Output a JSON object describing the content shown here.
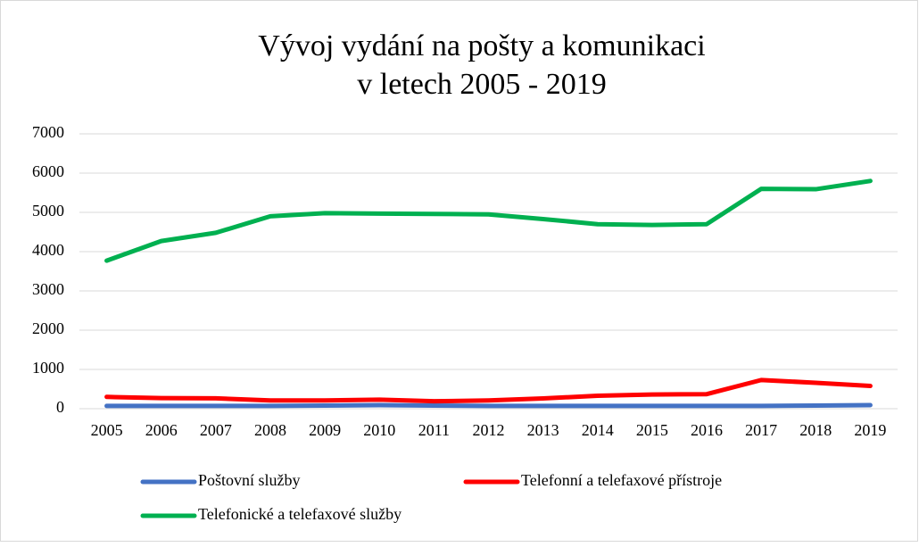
{
  "chart_data": {
    "type": "line",
    "title": [
      "Vývoj vydání na pošty a komunikaci",
      "v letech 2005 - 2019"
    ],
    "categories": [
      "2005",
      "2006",
      "2007",
      "2008",
      "2009",
      "2010",
      "2011",
      "2012",
      "2013",
      "2014",
      "2015",
      "2016",
      "2017",
      "2018",
      "2019"
    ],
    "series": [
      {
        "name": "Poštovní služby",
        "color": "#4472c4",
        "values": [
          70,
          70,
          70,
          70,
          80,
          90,
          80,
          70,
          70,
          70,
          70,
          70,
          70,
          80,
          90
        ]
      },
      {
        "name": "Telefonní a telefaxové přístroje",
        "color": "#ff0000",
        "values": [
          300,
          270,
          265,
          210,
          210,
          230,
          190,
          210,
          260,
          330,
          360,
          370,
          730,
          660,
          580
        ]
      },
      {
        "name": "Telefonické a telefaxové služby",
        "color": "#00b050",
        "values": [
          3770,
          4270,
          4480,
          4900,
          4980,
          4970,
          4960,
          4950,
          4830,
          4700,
          4680,
          4700,
          5600,
          5590,
          5800
        ]
      }
    ],
    "ylim": [
      0,
      7000
    ],
    "yticks": [
      0,
      1000,
      2000,
      3000,
      4000,
      5000,
      6000,
      7000
    ],
    "grid": true,
    "legend": "bottom"
  }
}
